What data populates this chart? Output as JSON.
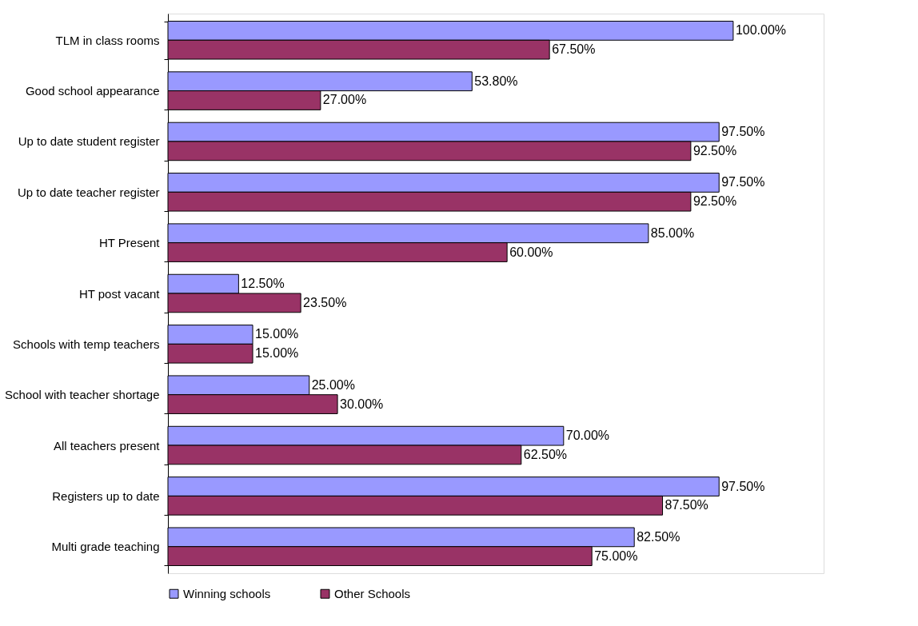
{
  "chart_data": {
    "type": "bar",
    "orientation": "horizontal",
    "legend": "bottom",
    "categories": [
      "TLM in class rooms",
      "Good school appearance",
      "Up to date student register",
      "Up to date teacher register",
      "HT Present",
      "HT post vacant",
      "Schools with temp teachers",
      "School with teacher shortage",
      "All teachers present",
      "Registers up to date",
      "Multi grade teaching"
    ],
    "series": [
      {
        "name": "Winning schools",
        "color": "#9999ff",
        "values": [
          100.0,
          53.8,
          97.5,
          97.5,
          85.0,
          12.5,
          15.0,
          25.0,
          70.0,
          97.5,
          82.5
        ],
        "value_labels": [
          "100.00%",
          "53.80%",
          "97.50%",
          "97.50%",
          "85.00%",
          "12.50%",
          "15.00%",
          "25.00%",
          "70.00%",
          "97.50%",
          "82.50%"
        ]
      },
      {
        "name": "Other Schools",
        "color": "#993366",
        "values": [
          67.5,
          27.0,
          92.5,
          92.5,
          60.0,
          23.5,
          15.0,
          30.0,
          62.5,
          87.5,
          75.0
        ],
        "value_labels": [
          "67.50%",
          "27.00%",
          "92.50%",
          "92.50%",
          "60.00%",
          "23.50%",
          "15.00%",
          "30.00%",
          "62.50%",
          "87.50%",
          "75.00%"
        ]
      }
    ]
  }
}
